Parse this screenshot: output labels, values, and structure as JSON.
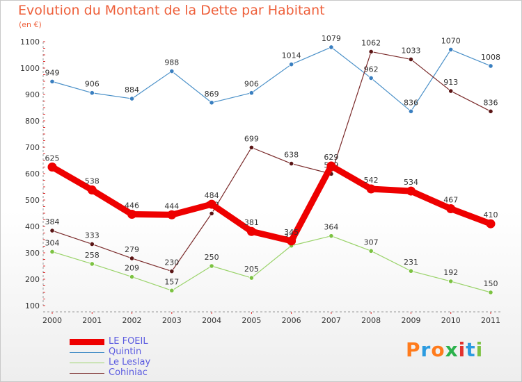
{
  "header": {
    "title": "Evolution du Montant de la Dette par Habitant",
    "unit": "(en €)"
  },
  "chart_data": {
    "type": "line",
    "title": "Evolution du Montant de la Dette par Habitant",
    "ylabel": "(en €)",
    "xlabel": "",
    "ylim": [
      100,
      1100
    ],
    "yticks": [
      100,
      200,
      300,
      400,
      500,
      600,
      700,
      800,
      900,
      1000,
      1100
    ],
    "categories": [
      "2000",
      "2001",
      "2002",
      "2003",
      "2004",
      "2005",
      "2006",
      "2007",
      "2008",
      "2009",
      "2010",
      "2011"
    ],
    "grid": false,
    "legend_position": "bottom-left",
    "series": [
      {
        "name": "Quintin",
        "color": "#4a90c8",
        "marker": "#3a7fc0",
        "values": [
          949,
          906,
          884,
          988,
          869,
          906,
          1014,
          1079,
          962,
          836,
          1070,
          1008
        ]
      },
      {
        "name": "Cohiniac",
        "color": "#7a2a2a",
        "marker": "#5a1515",
        "values": [
          384,
          333,
          279,
          230,
          449,
          699,
          638,
          599,
          1062,
          1033,
          913,
          836
        ]
      },
      {
        "name": "Le Leslay",
        "color": "#9ad36a",
        "marker": "#7cc242",
        "values": [
          304,
          258,
          209,
          157,
          250,
          205,
          327,
          364,
          307,
          231,
          192,
          150
        ]
      },
      {
        "name": "LE FOEIL",
        "color": "#ee0000",
        "marker": "#ee0000",
        "values": [
          625,
          538,
          446,
          444,
          484,
          381,
          345,
          629,
          542,
          534,
          467,
          410
        ]
      }
    ]
  },
  "legend": {
    "items": [
      {
        "label": "LE FOEIL",
        "color": "#ee0000"
      },
      {
        "label": "Quintin",
        "color": "#4a90c8"
      },
      {
        "label": "Le Leslay",
        "color": "#9ad36a"
      },
      {
        "label": "Cohiniac",
        "color": "#7a2a2a"
      }
    ]
  },
  "logo": {
    "letters": [
      "P",
      "r",
      "o",
      "x",
      "i",
      "t",
      "i"
    ],
    "colors": [
      "#ff7b1c",
      "#2b9be0",
      "#ff7b1c",
      "#2bb24c",
      "#e2332e",
      "#2b9be0",
      "#7cc242"
    ]
  }
}
